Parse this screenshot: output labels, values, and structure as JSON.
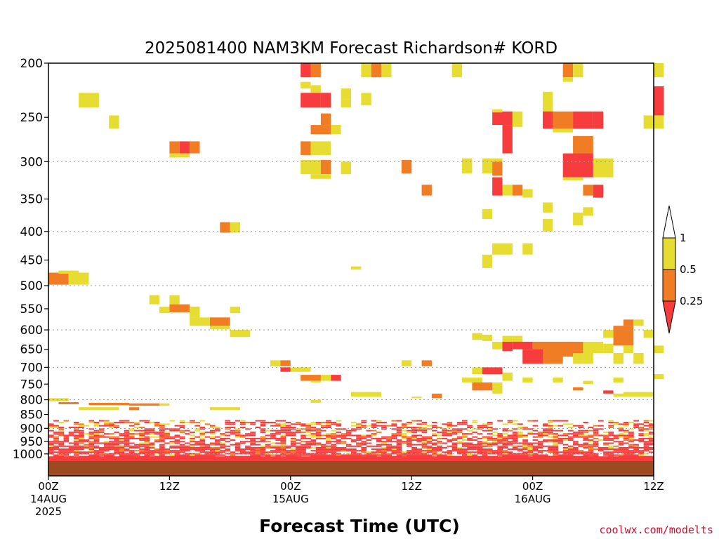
{
  "chart_data": {
    "type": "heatmap",
    "title": "2025081400 NAM3KM Forecast Richardson# KORD",
    "xlabel": "Forecast Time (UTC)",
    "ylabel": "",
    "credit": "coolwx.com/modelts",
    "x_range_hours": [
      0,
      60
    ],
    "y_range_hpa": [
      200,
      1000
    ],
    "y_scale": "log-pressure",
    "y_ticks": [
      200,
      250,
      300,
      350,
      400,
      450,
      500,
      550,
      600,
      650,
      700,
      750,
      800,
      850,
      900,
      950,
      1000
    ],
    "y_gridlines": [
      300,
      400,
      500,
      600,
      700,
      800,
      900,
      1000
    ],
    "x_ticks": [
      {
        "hour": 0,
        "line1": "00Z",
        "line2": "14AUG",
        "line3": "2025"
      },
      {
        "hour": 12,
        "line1": "12Z",
        "line2": "",
        "line3": ""
      },
      {
        "hour": 24,
        "line1": "00Z",
        "line2": "15AUG",
        "line3": ""
      },
      {
        "hour": 36,
        "line1": "12Z",
        "line2": "",
        "line3": ""
      },
      {
        "hour": 48,
        "line1": "00Z",
        "line2": "16AUG",
        "line3": ""
      },
      {
        "hour": 60,
        "line1": "12Z",
        "line2": "",
        "line3": ""
      }
    ],
    "legend": {
      "placement": "right",
      "levels": [
        "0.25",
        "0.5",
        "1"
      ],
      "colors": {
        "below_0.25": "#f63c3c",
        "0.25_0.5": "#f07d23",
        "0.5_1": "#e6dc32",
        "above_1": "#ffffff"
      }
    },
    "ground_color": "#9b4a22",
    "cells_note": "Richardson number < 1 regions; class 1 = <0.25 (red), 2 = 0.25-0.5 (orange), 3 = 0.5-1 (yellow)",
    "cells": [
      [
        25,
        26,
        200,
        212,
        1
      ],
      [
        26,
        27,
        200,
        212,
        2
      ],
      [
        25,
        26,
        216,
        222,
        3
      ],
      [
        26,
        27,
        219,
        226,
        3
      ],
      [
        25,
        27,
        226,
        240,
        1
      ],
      [
        27,
        28,
        226,
        240,
        1
      ],
      [
        3,
        5,
        226,
        240,
        3
      ],
      [
        6,
        7,
        248,
        262,
        3
      ],
      [
        31,
        32,
        200,
        212,
        3
      ],
      [
        32,
        33,
        200,
        212,
        2
      ],
      [
        33,
        34,
        200,
        212,
        3
      ],
      [
        40,
        41,
        200,
        212,
        3
      ],
      [
        27,
        28,
        246,
        258,
        2
      ],
      [
        26,
        28,
        258,
        268,
        2
      ],
      [
        28,
        29,
        258,
        268,
        3
      ],
      [
        29,
        30,
        222,
        232,
        3
      ],
      [
        29,
        30,
        232,
        240,
        3
      ],
      [
        31,
        32,
        226,
        238,
        3
      ],
      [
        12,
        13,
        276,
        290,
        2
      ],
      [
        13,
        14,
        276,
        290,
        1
      ],
      [
        14,
        15,
        276,
        290,
        2
      ],
      [
        12,
        14,
        290,
        295,
        3
      ],
      [
        25,
        26,
        276,
        292,
        2
      ],
      [
        26,
        28,
        276,
        292,
        3
      ],
      [
        25,
        27,
        298,
        316,
        3
      ],
      [
        27,
        28,
        298,
        316,
        2
      ],
      [
        26,
        28,
        316,
        322,
        3
      ],
      [
        29,
        30,
        300,
        316,
        3
      ],
      [
        35,
        36,
        298,
        315,
        2
      ],
      [
        37,
        38,
        330,
        345,
        2
      ],
      [
        41,
        42,
        296,
        315,
        3
      ],
      [
        43,
        44,
        296,
        315,
        3
      ],
      [
        44,
        45,
        300,
        318,
        2
      ],
      [
        44,
        45,
        320,
        345,
        1
      ],
      [
        45,
        46,
        330,
        345,
        3
      ],
      [
        46,
        47,
        330,
        345,
        2
      ],
      [
        47,
        48,
        336,
        348,
        3
      ],
      [
        44,
        45,
        296,
        300,
        3
      ],
      [
        44,
        46,
        244,
        258,
        1
      ],
      [
        45,
        46,
        258,
        290,
        1
      ],
      [
        46,
        47,
        244,
        260,
        3
      ],
      [
        44,
        45,
        242,
        245,
        3
      ],
      [
        49,
        50,
        235,
        245,
        3
      ],
      [
        49,
        50,
        244,
        262,
        1
      ],
      [
        50,
        52,
        244,
        262,
        2
      ],
      [
        52,
        54,
        244,
        262,
        1
      ],
      [
        54,
        55,
        244,
        262,
        1
      ],
      [
        50,
        52,
        262,
        266,
        3
      ],
      [
        52,
        54,
        270,
        290,
        2
      ],
      [
        51,
        54,
        290,
        320,
        1
      ],
      [
        54,
        56,
        296,
        320,
        3
      ],
      [
        51,
        53,
        320,
        324,
        3
      ],
      [
        53,
        54,
        330,
        345,
        2
      ],
      [
        54,
        55,
        330,
        348,
        1
      ],
      [
        51,
        52,
        200,
        212,
        2
      ],
      [
        52,
        53,
        200,
        212,
        3
      ],
      [
        51,
        52,
        212,
        216,
        3
      ],
      [
        60,
        61,
        200,
        212,
        3
      ],
      [
        49,
        50,
        225,
        240,
        3
      ],
      [
        60,
        61,
        220,
        248,
        1
      ],
      [
        59,
        61,
        248,
        262,
        3
      ],
      [
        43,
        44,
        365,
        380,
        3
      ],
      [
        44,
        45,
        420,
        440,
        3
      ],
      [
        45,
        46,
        420,
        440,
        3
      ],
      [
        47,
        48,
        420,
        440,
        3
      ],
      [
        49,
        50,
        380,
        400,
        3
      ],
      [
        49,
        50,
        355,
        370,
        3
      ],
      [
        52,
        53,
        370,
        390,
        3
      ],
      [
        53,
        54,
        362,
        375,
        3
      ],
      [
        43,
        44,
        440,
        465,
        3
      ],
      [
        17,
        18,
        385,
        402,
        2
      ],
      [
        18,
        19,
        385,
        402,
        3
      ],
      [
        30,
        31,
        462,
        468,
        3
      ],
      [
        0,
        2,
        474,
        498,
        2
      ],
      [
        2,
        4,
        474,
        498,
        3
      ],
      [
        1,
        3,
        470,
        476,
        3
      ],
      [
        10,
        11,
        520,
        540,
        3
      ],
      [
        11,
        12,
        545,
        560,
        3
      ],
      [
        12,
        13,
        520,
        540,
        3
      ],
      [
        12,
        14,
        540,
        558,
        2
      ],
      [
        14,
        15,
        545,
        570,
        3
      ],
      [
        14,
        16,
        570,
        590,
        3
      ],
      [
        16,
        18,
        570,
        590,
        2
      ],
      [
        18,
        19,
        545,
        560,
        3
      ],
      [
        18,
        20,
        600,
        618,
        3
      ],
      [
        16,
        18,
        590,
        598,
        3
      ],
      [
        22,
        23,
        680,
        697,
        3
      ],
      [
        23,
        24,
        680,
        697,
        2
      ],
      [
        23,
        24,
        700,
        713,
        1
      ],
      [
        24,
        26,
        700,
        713,
        3
      ],
      [
        25,
        27,
        722,
        740,
        2
      ],
      [
        27,
        28,
        722,
        740,
        3
      ],
      [
        28,
        29,
        722,
        740,
        1
      ],
      [
        26,
        27,
        740,
        745,
        3
      ],
      [
        30,
        33,
        775,
        790,
        3
      ],
      [
        35,
        36,
        680,
        697,
        3
      ],
      [
        37,
        38,
        680,
        697,
        2
      ],
      [
        42,
        43,
        608,
        625,
        3
      ],
      [
        43,
        44,
        612,
        628,
        3
      ],
      [
        44,
        45,
        630,
        650,
        3
      ],
      [
        45,
        46,
        615,
        630,
        3
      ],
      [
        45,
        46,
        630,
        655,
        1
      ],
      [
        46,
        47,
        615,
        640,
        3
      ],
      [
        46,
        48,
        630,
        650,
        1
      ],
      [
        48,
        52,
        630,
        670,
        2
      ],
      [
        47,
        49,
        650,
        690,
        1
      ],
      [
        49,
        51,
        660,
        690,
        2
      ],
      [
        51,
        53,
        630,
        660,
        2
      ],
      [
        52,
        53,
        660,
        690,
        3
      ],
      [
        53,
        55,
        630,
        660,
        3
      ],
      [
        53,
        54,
        660,
        690,
        3
      ],
      [
        55,
        56,
        635,
        660,
        3
      ],
      [
        56,
        57,
        660,
        690,
        3
      ],
      [
        55,
        56,
        600,
        620,
        3
      ],
      [
        56,
        58,
        590,
        640,
        2
      ],
      [
        57,
        58,
        575,
        590,
        2
      ],
      [
        58,
        59,
        575,
        590,
        3
      ],
      [
        58,
        59,
        660,
        690,
        3
      ],
      [
        59,
        60,
        600,
        620,
        3
      ],
      [
        60,
        61,
        640,
        660,
        3
      ],
      [
        57,
        58,
        640,
        660,
        3
      ],
      [
        43,
        45,
        700,
        720,
        1
      ],
      [
        42,
        43,
        700,
        720,
        3
      ],
      [
        45,
        46,
        715,
        740,
        3
      ],
      [
        41,
        43,
        730,
        745,
        3
      ],
      [
        42,
        44,
        745,
        770,
        2
      ],
      [
        44,
        45,
        745,
        780,
        3
      ],
      [
        47,
        48,
        730,
        745,
        3
      ],
      [
        50,
        51,
        730,
        745,
        3
      ],
      [
        53,
        54,
        740,
        750,
        3
      ],
      [
        56,
        57,
        730,
        745,
        3
      ],
      [
        60,
        61,
        720,
        735,
        3
      ],
      [
        52,
        53,
        760,
        770,
        2
      ],
      [
        55,
        56,
        770,
        780,
        1
      ],
      [
        56,
        57,
        780,
        790,
        3
      ],
      [
        57,
        60,
        775,
        790,
        3
      ],
      [
        38,
        39,
        780,
        795,
        2
      ],
      [
        36,
        37,
        790,
        795,
        3
      ],
      [
        26,
        27,
        800,
        810,
        3
      ],
      [
        0,
        2,
        795,
        805,
        3
      ],
      [
        1,
        3,
        808,
        815,
        2
      ],
      [
        4,
        8,
        810,
        818,
        2
      ],
      [
        8,
        11,
        812,
        820,
        2
      ],
      [
        3,
        7,
        825,
        835,
        3
      ],
      [
        8,
        9,
        825,
        835,
        2
      ],
      [
        16,
        19,
        825,
        835,
        3
      ],
      [
        11,
        12,
        812,
        820,
        3
      ]
    ]
  }
}
